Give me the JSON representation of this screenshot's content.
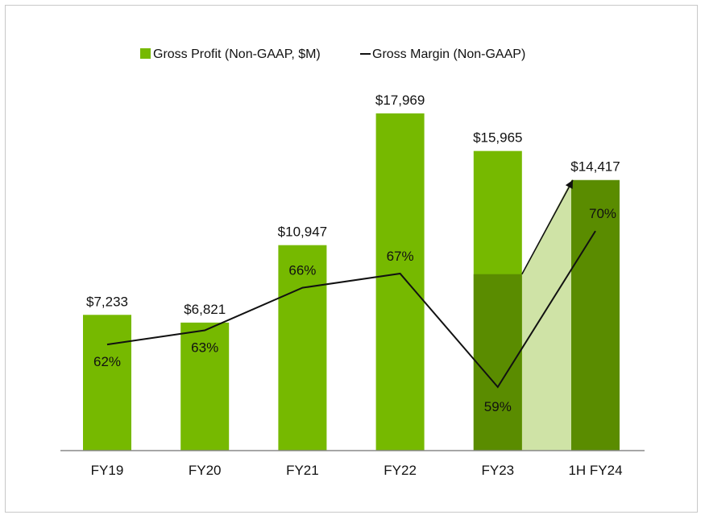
{
  "chart_data": {
    "type": "bar",
    "title": "",
    "legend": {
      "placement": "top-center",
      "bar_label": "Gross Profit (Non-GAAP, $M)",
      "line_label": "Gross Margin (Non-GAAP)"
    },
    "categories": [
      "FY19",
      "FY20",
      "FY21",
      "FY22",
      "FY23",
      "1H FY24"
    ],
    "series": [
      {
        "name": "Gross Profit (Non-GAAP, $M)",
        "type": "bar",
        "values": [
          7233,
          6821,
          10947,
          17969,
          15965,
          14417
        ],
        "value_labels": [
          "$7,233",
          "$6,821",
          "$10,947",
          "$17,969",
          "$15,965",
          "$14,417"
        ]
      },
      {
        "name": "Gross Margin (Non-GAAP)",
        "type": "line",
        "values": [
          62,
          63,
          66,
          67,
          59,
          70
        ],
        "value_labels": [
          "62%",
          "63%",
          "66%",
          "67%",
          "59%",
          "70%"
        ]
      }
    ],
    "highlight_segment": {
      "category": "FY23",
      "value": 9400
    },
    "ylim": [
      0,
      18500
    ],
    "margin_axis": [
      56,
      73
    ],
    "grid": false,
    "colors": {
      "bar": "#76b900",
      "bar_dark": "#5a8c00",
      "bridge": "#cfe3a6",
      "line": "#111111",
      "axis": "#888888"
    }
  }
}
